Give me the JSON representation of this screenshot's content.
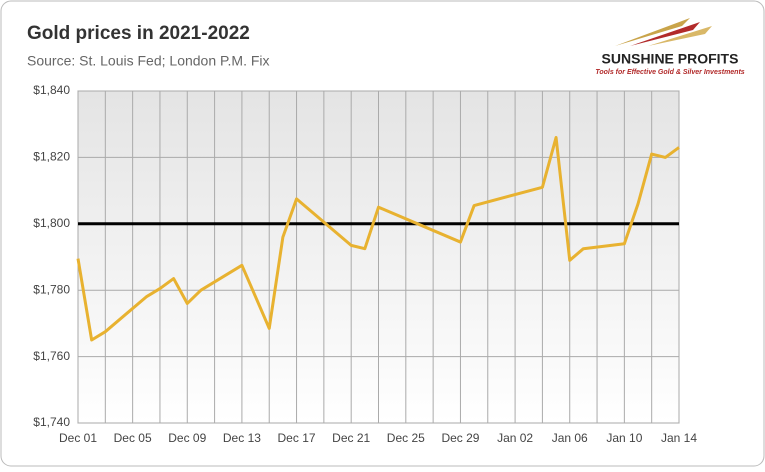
{
  "chart_data": {
    "type": "line",
    "title": "Gold prices in 2021-2022",
    "subtitle": "Source: St. Louis Fed; London P.M. Fix",
    "logo": {
      "name": "SUNSHINE PROFITS",
      "tagline": "Tools for Effective Gold & Silver Investments"
    },
    "x": [
      0,
      1,
      2,
      5,
      6,
      7,
      8,
      9,
      12,
      13,
      14,
      15,
      16,
      19,
      20,
      21,
      22,
      28,
      29,
      34,
      35,
      36,
      37,
      40,
      41,
      42,
      43,
      44
    ],
    "series": [
      {
        "name": "Gold price",
        "color": "#e8b230",
        "values": [
          1789.5,
          1765,
          1767.5,
          1778,
          1780.5,
          1783.5,
          1776,
          1780,
          1787.5,
          1778,
          1768.5,
          1796,
          1807.5,
          1797,
          1793.5,
          1792.5,
          1805,
          1794.5,
          1805.5,
          1811,
          1826,
          1789,
          1792.5,
          1794,
          1806,
          1821,
          1820,
          1823
        ]
      }
    ],
    "xlim": [
      0,
      44
    ],
    "xticks": [
      {
        "value": 0,
        "label": "Dec 01"
      },
      {
        "value": 4,
        "label": "Dec 05"
      },
      {
        "value": 8,
        "label": "Dec 09"
      },
      {
        "value": 12,
        "label": "Dec 13"
      },
      {
        "value": 16,
        "label": "Dec 17"
      },
      {
        "value": 20,
        "label": "Dec 21"
      },
      {
        "value": 24,
        "label": "Dec 25"
      },
      {
        "value": 28,
        "label": "Dec 29"
      },
      {
        "value": 32,
        "label": "Jan 02"
      },
      {
        "value": 36,
        "label": "Jan 06"
      },
      {
        "value": 40,
        "label": "Jan 10"
      },
      {
        "value": 44,
        "label": "Jan 14"
      }
    ],
    "x_minor_ticks": [
      2,
      6,
      10,
      14,
      18,
      22,
      26,
      30,
      34,
      38,
      42
    ],
    "ylim": [
      1740,
      1840
    ],
    "yticks": [
      {
        "value": 1740,
        "label": "$1,740"
      },
      {
        "value": 1760,
        "label": "$1,760"
      },
      {
        "value": 1780,
        "label": "$1,780"
      },
      {
        "value": 1800,
        "label": "$1,800"
      },
      {
        "value": 1820,
        "label": "$1,820"
      },
      {
        "value": 1840,
        "label": "$1,840"
      }
    ],
    "reference_line": 1800,
    "grid": true
  }
}
